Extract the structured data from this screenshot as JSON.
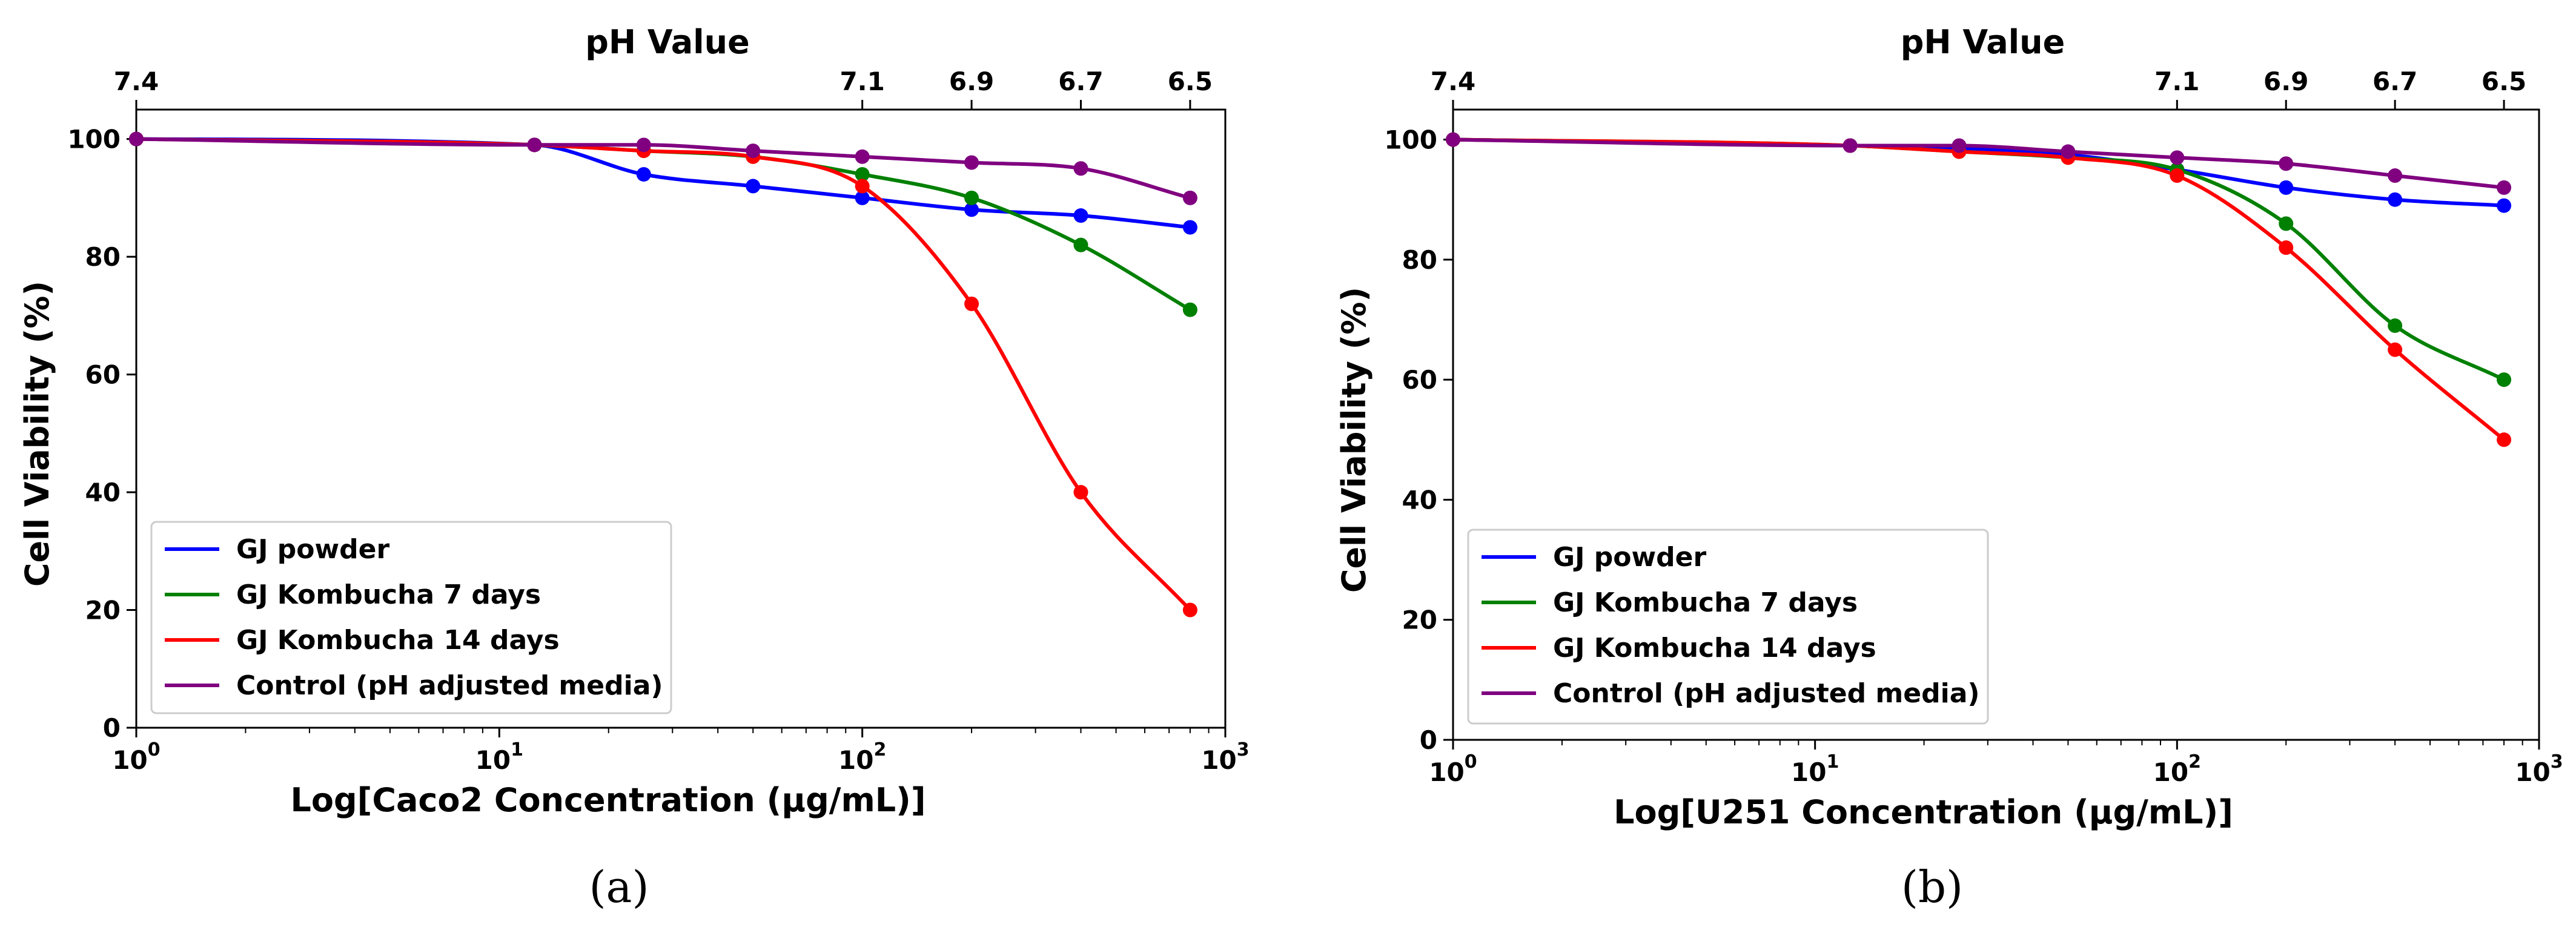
{
  "figure": {
    "panel_labels": [
      "(a)",
      "(b)"
    ]
  },
  "chart_data": [
    {
      "type": "line",
      "panel": "(a)",
      "title": "pH Value",
      "xlabel": "Log[Caco2 Concentration (µg/mL)]",
      "ylabel": "Cell Viability (%)",
      "xscale": "log",
      "xlim": [
        1,
        1000
      ],
      "ylim": [
        0,
        105
      ],
      "x_ticks": [
        1,
        10,
        100,
        1000
      ],
      "x_tick_labels": [
        {
          "base": "10",
          "exp": "0"
        },
        {
          "base": "10",
          "exp": "1"
        },
        {
          "base": "10",
          "exp": "2"
        },
        {
          "base": "10",
          "exp": "3"
        }
      ],
      "y_ticks": [
        0,
        20,
        40,
        60,
        80,
        100
      ],
      "top_axis": {
        "label": "pH Value",
        "ticks": [
          1,
          100,
          200,
          400,
          800
        ],
        "tick_labels": [
          "7.4",
          "7.1",
          "6.9",
          "6.7",
          "6.5"
        ]
      },
      "x": [
        1,
        12.5,
        25,
        50,
        100,
        200,
        400,
        800
      ],
      "series": [
        {
          "name": "GJ powder",
          "color": "#0000ff",
          "values": [
            100,
            99,
            94,
            92,
            90,
            88,
            87,
            85
          ]
        },
        {
          "name": "GJ Kombucha 7 days",
          "color": "#008000",
          "values": [
            100,
            99,
            98,
            97,
            94,
            90,
            82,
            71
          ]
        },
        {
          "name": "GJ Kombucha 14 days",
          "color": "#ff0000",
          "values": [
            100,
            99,
            98,
            97,
            92,
            72,
            40,
            20
          ]
        },
        {
          "name": "Control (pH adjusted media)",
          "color": "#800080",
          "values": [
            100,
            99,
            99,
            98,
            97,
            96,
            95,
            90
          ]
        }
      ],
      "legend": "lower-left"
    },
    {
      "type": "line",
      "panel": "(b)",
      "title": "pH Value",
      "xlabel": "Log[U251 Concentration (µg/mL)]",
      "ylabel": "Cell Viability (%)",
      "xscale": "log",
      "xlim": [
        1,
        1000
      ],
      "ylim": [
        0,
        105
      ],
      "x_ticks": [
        1,
        10,
        100,
        1000
      ],
      "x_tick_labels": [
        {
          "base": "10",
          "exp": "0"
        },
        {
          "base": "10",
          "exp": "1"
        },
        {
          "base": "10",
          "exp": "2"
        },
        {
          "base": "10",
          "exp": "3"
        }
      ],
      "y_ticks": [
        0,
        20,
        40,
        60,
        80,
        100
      ],
      "top_axis": {
        "label": "pH Value",
        "ticks": [
          1,
          100,
          200,
          400,
          800
        ],
        "tick_labels": [
          "7.4",
          "7.1",
          "6.9",
          "6.7",
          "6.5"
        ]
      },
      "x": [
        1,
        12.5,
        25,
        50,
        100,
        200,
        400,
        800
      ],
      "series": [
        {
          "name": "GJ powder",
          "color": "#0000ff",
          "values": [
            100,
            99,
            98.5,
            97.5,
            95,
            92,
            90,
            89
          ]
        },
        {
          "name": "GJ Kombucha 7 days",
          "color": "#008000",
          "values": [
            100,
            99,
            98,
            97,
            95,
            86,
            69,
            60
          ]
        },
        {
          "name": "GJ Kombucha 14 days",
          "color": "#ff0000",
          "values": [
            100,
            99,
            98,
            97,
            94,
            82,
            65,
            50
          ]
        },
        {
          "name": "Control (pH adjusted media)",
          "color": "#800080",
          "values": [
            100,
            99,
            99,
            98,
            97,
            96,
            94,
            92
          ]
        }
      ],
      "legend": "lower-left"
    }
  ]
}
